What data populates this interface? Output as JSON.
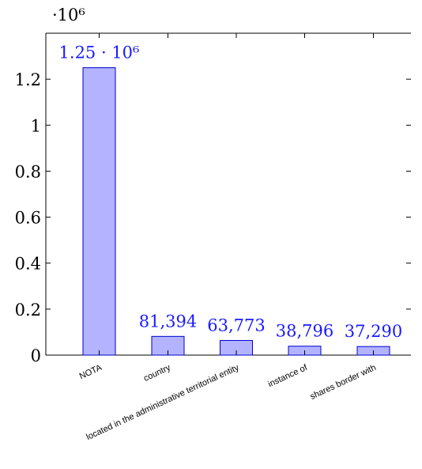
{
  "chart_data": {
    "type": "bar",
    "categories": [
      "NOTA",
      "country",
      "located in the administrative territorial entity",
      "instance of",
      "shares border with"
    ],
    "values": [
      1250000,
      81394,
      63773,
      38796,
      37290
    ],
    "value_labels": [
      "1.25 · 10⁶",
      "81,394",
      "63,773",
      "38,796",
      "37,290"
    ],
    "yticks": [
      0,
      0.2,
      0.4,
      0.6,
      0.8,
      1,
      1.2
    ],
    "ytick_labels": [
      "0",
      "0.2",
      "0.4",
      "0.6",
      "0.8",
      "1",
      "1.2"
    ],
    "y_multiplier_label": "·10⁶",
    "ylim": [
      0,
      1.4
    ],
    "xlabel": "",
    "ylabel": "",
    "grid": false,
    "bar_fill": "#b3b3ff",
    "bar_stroke": "#0000cc",
    "label_color": "#1a1aff"
  }
}
